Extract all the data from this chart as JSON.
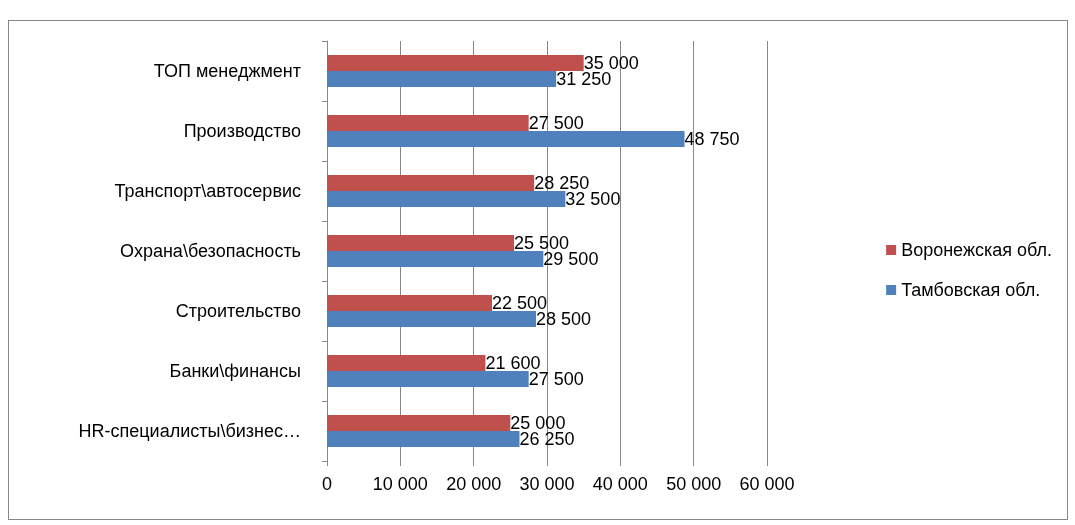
{
  "chart_data": {
    "type": "bar",
    "orientation": "horizontal",
    "categories": [
      "ТОП менеджмент",
      "Производство",
      "Транспорт\\автосервис",
      "Охрана\\безопасность",
      "Строительство",
      "Банки\\финансы",
      "HR-специалисты\\бизнес…"
    ],
    "series": [
      {
        "name": "Воронежская обл.",
        "color": "#c0504d",
        "values": [
          35000,
          27500,
          28250,
          25500,
          22500,
          21600,
          25000
        ],
        "value_labels": [
          "35 000",
          "27 500",
          "28 250",
          "25 500",
          "22 500",
          "21 600",
          "25 000"
        ]
      },
      {
        "name": "Тамбовская обл.",
        "color": "#4f81bd",
        "values": [
          31250,
          48750,
          32500,
          29500,
          28500,
          27500,
          26250
        ],
        "value_labels": [
          "31 250",
          "48 750",
          "32 500",
          "29 500",
          "28 500",
          "27 500",
          "26 250"
        ]
      }
    ],
    "xlim": [
      0,
      60000
    ],
    "xticks": [
      0,
      {
        "value": 10000,
        "label": "10 000"
      },
      {
        "value": 20000,
        "label": "20 000"
      },
      {
        "value": 30000,
        "label": "30 000"
      },
      {
        "value": 40000,
        "label": "40 000"
      },
      {
        "value": 50000,
        "label": "50 000"
      },
      {
        "value": 60000,
        "label": "60 000"
      }
    ],
    "grid": "x",
    "legend": "right"
  }
}
